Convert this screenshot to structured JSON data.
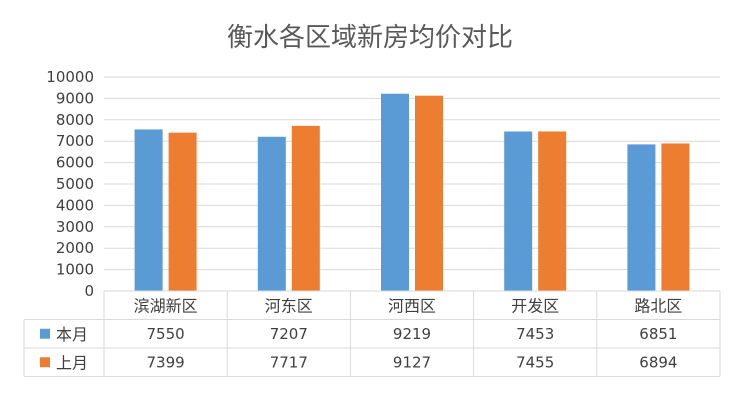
{
  "colors": {
    "current_month": "#5B9BD5",
    "last_month": "#ED7D31",
    "grid": "#D9D9D9",
    "axis": "#BFBFBF",
    "text": "#404040",
    "title": "#595959"
  },
  "chart_data": {
    "type": "bar",
    "title": "衡水各区域新房均价对比",
    "categories": [
      "滨湖新区",
      "河东区",
      "河西区",
      "开发区",
      "路北区"
    ],
    "series": [
      {
        "name": "本月",
        "values": [
          7550,
          7207,
          9219,
          7453,
          6851
        ]
      },
      {
        "name": "上月",
        "values": [
          7399,
          7717,
          9127,
          7455,
          6894
        ]
      }
    ],
    "ylim": [
      0,
      10000
    ],
    "yticks": [
      "0",
      "1000",
      "2000",
      "3000",
      "4000",
      "5000",
      "6000",
      "7000",
      "8000",
      "9000",
      "10000"
    ],
    "grid": true,
    "legend_placement": "data-table",
    "data_table": true
  }
}
